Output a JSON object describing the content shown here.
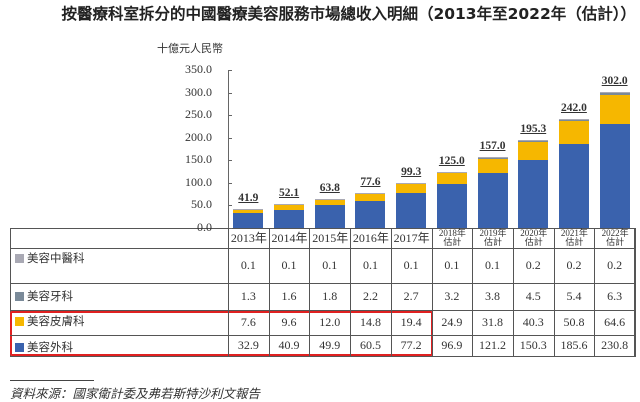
{
  "title": "按醫療科室拆分的中國醫療美容服務市場總收入明細（2013年至2022年（估計））",
  "unit_label": "十億元人民幣",
  "source": "資料來源：國家衛計委及弗若斯特沙利文報告",
  "colors": {
    "tcm": "#a9a9b4",
    "dental": "#7a8a99",
    "dermatology": "#f6b700",
    "surgery": "#3a62ad",
    "highlight": "#e02020"
  },
  "chart_data": {
    "type": "bar",
    "stacked": true,
    "title": "按醫療科室拆分的中國醫療美容服務市場總收入明細（2013年至2022年（估計））",
    "ylabel": "十億元人民幣",
    "xlabel": "",
    "ylim": [
      0,
      350
    ],
    "yticks": [
      "0.0",
      "50.0",
      "100.0",
      "150.0",
      "200.0",
      "250.0",
      "300.0",
      "350.0"
    ],
    "categories": [
      "2013年",
      "2014年",
      "2015年",
      "2016年",
      "2017年",
      "2018年 估計",
      "2019年 估計",
      "2020年 估計",
      "2021年 估計",
      "2022年 估計"
    ],
    "series": [
      {
        "name": "美容外科",
        "color": "#3a62ad",
        "values": [
          32.9,
          40.9,
          49.9,
          60.5,
          77.2,
          96.9,
          121.2,
          150.3,
          185.6,
          230.8
        ]
      },
      {
        "name": "美容皮膚科",
        "color": "#f6b700",
        "values": [
          7.6,
          9.6,
          12.0,
          14.8,
          19.4,
          24.9,
          31.8,
          40.3,
          50.8,
          64.6
        ]
      },
      {
        "name": "美容牙科",
        "color": "#7a8a99",
        "values": [
          1.3,
          1.6,
          1.8,
          2.2,
          2.7,
          3.2,
          3.8,
          4.5,
          5.4,
          6.3
        ]
      },
      {
        "name": "美容中醫科",
        "color": "#a9a9b4",
        "values": [
          0.1,
          0.1,
          0.1,
          0.1,
          0.1,
          0.1,
          0.1,
          0.2,
          0.2,
          0.2
        ]
      }
    ],
    "totals": [
      "41.9",
      "52.1",
      "63.8",
      "77.6",
      "99.3",
      "125.0",
      "157.0",
      "195.3",
      "242.0",
      "302.0"
    ],
    "grid": false,
    "legend_position": "table-left"
  },
  "table": {
    "headers": [
      {
        "year": "2013年",
        "note": ""
      },
      {
        "year": "2014年",
        "note": ""
      },
      {
        "year": "2015年",
        "note": ""
      },
      {
        "year": "2016年",
        "note": ""
      },
      {
        "year": "2017年",
        "note": ""
      },
      {
        "year": "2018年",
        "note": "估計"
      },
      {
        "year": "2019年",
        "note": "估計"
      },
      {
        "year": "2020年",
        "note": "估計"
      },
      {
        "year": "2021年",
        "note": "估計"
      },
      {
        "year": "2022年",
        "note": "估計"
      }
    ],
    "rows": [
      {
        "label": "美容中醫科",
        "values": [
          "0.1",
          "0.1",
          "0.1",
          "0.1",
          "0.1",
          "0.1",
          "0.1",
          "0.2",
          "0.2",
          "0.2"
        ]
      },
      {
        "label": "美容牙科",
        "values": [
          "1.3",
          "1.6",
          "1.8",
          "2.2",
          "2.7",
          "3.2",
          "3.8",
          "4.5",
          "5.4",
          "6.3"
        ]
      },
      {
        "label": "美容皮膚科",
        "values": [
          "7.6",
          "9.6",
          "12.0",
          "14.8",
          "19.4",
          "24.9",
          "31.8",
          "40.3",
          "50.8",
          "64.6"
        ]
      },
      {
        "label": "美容外科",
        "values": [
          "32.9",
          "40.9",
          "49.9",
          "60.5",
          "77.2",
          "96.9",
          "121.2",
          "150.3",
          "185.6",
          "230.8"
        ]
      }
    ]
  }
}
